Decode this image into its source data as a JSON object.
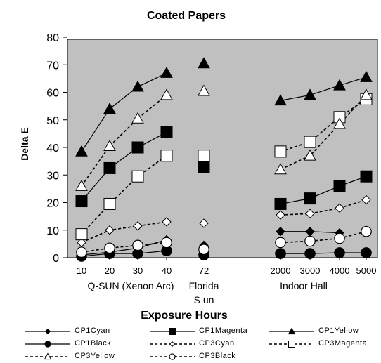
{
  "chart_data": {
    "type": "line",
    "title": "Coated Papers",
    "xlabel": "Exposure Hours",
    "ylabel": "Delta E",
    "ylim": [
      0,
      80
    ],
    "yticks": [
      0,
      10,
      20,
      30,
      40,
      50,
      60,
      70,
      80
    ],
    "grid": false,
    "background_color": "#c0c0c0",
    "categories": [
      "10",
      "20",
      "30",
      "40",
      "72",
      "2000",
      "3000",
      "4000",
      "5000"
    ],
    "groups": [
      {
        "label": "Q-SUN (Xenon Arc)",
        "categories": [
          "10",
          "20",
          "30",
          "40"
        ]
      },
      {
        "label": "Florida",
        "label2": "S un",
        "categories": [
          "72"
        ]
      },
      {
        "label": "Indoor Hall",
        "categories": [
          "2000",
          "3000",
          "4000",
          "5000"
        ]
      }
    ],
    "legend_position": "bottom",
    "series": [
      {
        "name": "CP1Cyan",
        "marker": "diamond",
        "fill": "#000000",
        "dashed": false,
        "values": [
          1,
          2,
          3.5,
          6.5,
          4.5,
          9.5,
          9.5,
          9,
          null
        ]
      },
      {
        "name": "CP1Magenta",
        "marker": "square",
        "fill": "#000000",
        "dashed": false,
        "values": [
          20.5,
          32.5,
          40,
          45.5,
          33,
          19.5,
          21.5,
          26,
          29.5
        ]
      },
      {
        "name": "CP1Yellow",
        "marker": "triangle",
        "fill": "#000000",
        "dashed": false,
        "values": [
          38.5,
          54,
          62,
          67,
          70.5,
          57,
          59,
          62.5,
          65.5
        ]
      },
      {
        "name": "CP1Black",
        "marker": "circle",
        "fill": "#000000",
        "dashed": false,
        "values": [
          0.5,
          1.5,
          1.5,
          2.5,
          1,
          1.5,
          1.5,
          1.8,
          1.8
        ]
      },
      {
        "name": "CP3Cyan",
        "marker": "diamond",
        "fill": "#ffffff",
        "dashed": true,
        "values": [
          5.5,
          10,
          11.5,
          13,
          12.5,
          15.5,
          16,
          18,
          21
        ]
      },
      {
        "name": "CP3Magenta",
        "marker": "square",
        "fill": "#ffffff",
        "dashed": true,
        "values": [
          8.5,
          19.5,
          29.5,
          37,
          37,
          38.5,
          42,
          51,
          57.5
        ]
      },
      {
        "name": "CP3Yellow",
        "marker": "triangle",
        "fill": "#ffffff",
        "dashed": true,
        "values": [
          26,
          40.5,
          50.5,
          59,
          60.5,
          32,
          37,
          48.5,
          59
        ]
      },
      {
        "name": "CP3Black",
        "marker": "circle",
        "fill": "#ffffff",
        "dashed": true,
        "values": [
          2,
          3.5,
          4.5,
          5.5,
          3,
          5.5,
          6,
          7,
          9.5
        ]
      }
    ]
  }
}
